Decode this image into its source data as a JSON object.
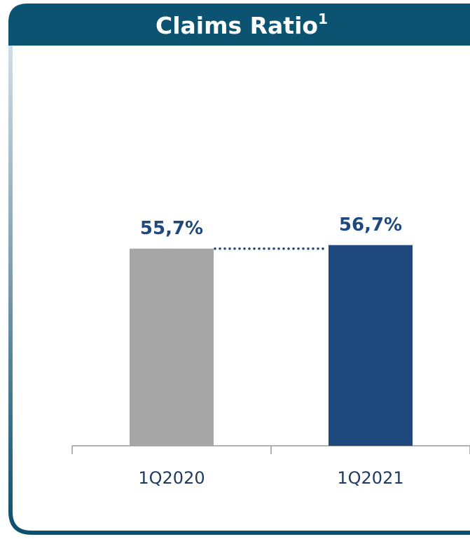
{
  "chart_data": {
    "type": "bar",
    "title": "Claims Ratio",
    "title_footnote": "1",
    "categories": [
      "1Q2020",
      "1Q2021"
    ],
    "values": [
      55.7,
      56.7
    ],
    "value_labels": [
      "55,7%",
      "56,7%"
    ],
    "colors": [
      "#a6a6a6",
      "#1f497d"
    ],
    "ylim": [
      0,
      60
    ],
    "connector": true
  }
}
